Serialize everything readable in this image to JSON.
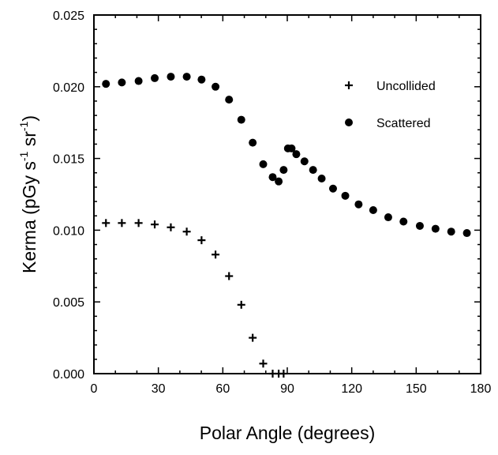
{
  "chart_data": {
    "type": "scatter",
    "xlabel": "Polar Angle (degrees)",
    "ylabel": {
      "main": "Kerma (pGy s",
      "sup1": "-1",
      "mid": " sr",
      "sup2": "-1",
      "end": ")"
    },
    "xlim": [
      0,
      180
    ],
    "ylim": [
      0,
      0.025
    ],
    "x_ticks": [
      "0",
      "30",
      "60",
      "90",
      "120",
      "150",
      "180"
    ],
    "y_ticks": [
      "0.000",
      "0.005",
      "0.010",
      "0.015",
      "0.020",
      "0.025"
    ],
    "grid": false,
    "legend_position": "top-right",
    "series": [
      {
        "name": "Uncollided",
        "marker": "plus",
        "x": [
          5.6,
          13.0,
          20.8,
          28.3,
          35.8,
          43.2,
          50.1,
          56.6,
          62.9,
          68.6,
          73.9,
          78.8,
          83.2,
          86.0,
          88.3
        ],
        "y": [
          0.0105,
          0.0105,
          0.0105,
          0.0104,
          0.0102,
          0.0099,
          0.0093,
          0.0083,
          0.0068,
          0.0048,
          0.0025,
          0.0007,
          0.0,
          0.0,
          0.0
        ]
      },
      {
        "name": "Scattered",
        "marker": "filled-circle",
        "x": [
          5.6,
          13.0,
          20.8,
          28.3,
          35.8,
          43.2,
          50.1,
          56.6,
          62.9,
          68.6,
          73.9,
          78.8,
          83.2,
          86.0,
          88.3,
          90.3,
          92.0,
          94.2,
          98.0,
          102.0,
          106.0,
          111.3,
          117.0,
          123.2,
          130.0,
          137.0,
          144.1,
          151.7,
          159.0,
          166.3,
          173.6
        ],
        "y": [
          0.0202,
          0.0203,
          0.0204,
          0.0206,
          0.0207,
          0.0207,
          0.0205,
          0.02,
          0.0191,
          0.0177,
          0.0161,
          0.0146,
          0.0137,
          0.0134,
          0.0142,
          0.0157,
          0.0157,
          0.0153,
          0.0148,
          0.0142,
          0.0136,
          0.0129,
          0.0124,
          0.0118,
          0.0114,
          0.0109,
          0.0106,
          0.0103,
          0.0101,
          0.0099,
          0.0098
        ]
      }
    ]
  }
}
